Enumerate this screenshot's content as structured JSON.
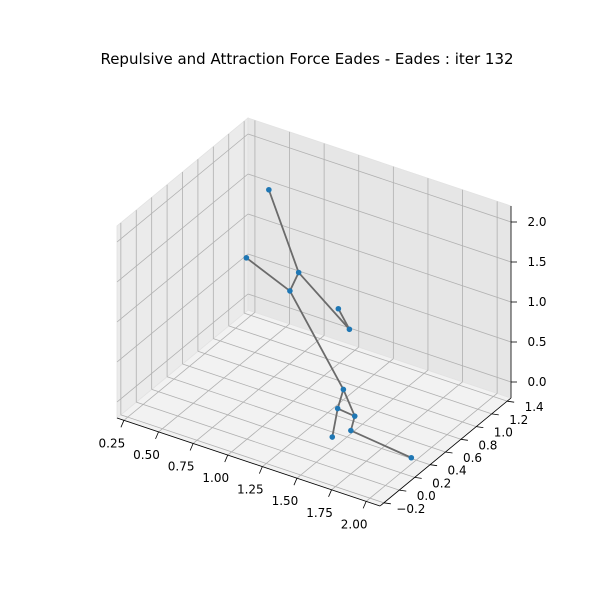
{
  "chart_data": {
    "type": "scatter",
    "title": "Repulsive and Attraction Force Eades - Eades : iter 132",
    "xticks": [
      "0.25",
      "0.50",
      "0.75",
      "1.00",
      "1.25",
      "1.50",
      "1.75",
      "2.00"
    ],
    "yticks": [
      "−0.2",
      "0.0",
      "0.2",
      "0.4",
      "0.6",
      "0.8",
      "1.0",
      "1.2",
      "1.4"
    ],
    "zticks": [
      "0.0",
      "0.5",
      "1.0",
      "1.5",
      "2.0"
    ],
    "xlim": [
      0.2,
      2.1
    ],
    "ylim": [
      -0.25,
      1.45
    ],
    "zlim": [
      -0.2,
      2.2
    ],
    "grid": true,
    "node_color": "#1f77b4",
    "edge_color": "#6b6b6b",
    "nodes": [
      {
        "x": 0.59,
        "y": 1.02,
        "z": 1.87
      },
      {
        "x": 0.9,
        "y": 0.85,
        "z": 1.15
      },
      {
        "x": 0.45,
        "y": 0.98,
        "z": 0.97
      },
      {
        "x": 0.82,
        "y": 0.88,
        "z": 0.85
      },
      {
        "x": 1.17,
        "y": 0.88,
        "z": 0.83
      },
      {
        "x": 1.3,
        "y": 0.79,
        "z": 0.72
      },
      {
        "x": 1.34,
        "y": 0.64,
        "z": 0.11
      },
      {
        "x": 1.36,
        "y": 0.53,
        "z": -0.03
      },
      {
        "x": 1.5,
        "y": 0.5,
        "z": -0.02
      },
      {
        "x": 1.36,
        "y": 0.46,
        "z": -0.33
      },
      {
        "x": 1.55,
        "y": 0.36,
        "z": -0.06
      },
      {
        "x": 2.02,
        "y": 0.3,
        "z": -0.08
      }
    ],
    "edges": [
      [
        0,
        1
      ],
      [
        1,
        5
      ],
      [
        1,
        3
      ],
      [
        2,
        3
      ],
      [
        3,
        6
      ],
      [
        5,
        4
      ],
      [
        6,
        7
      ],
      [
        7,
        9
      ],
      [
        7,
        8
      ],
      [
        8,
        10
      ],
      [
        10,
        11
      ],
      [
        6,
        8
      ]
    ]
  }
}
